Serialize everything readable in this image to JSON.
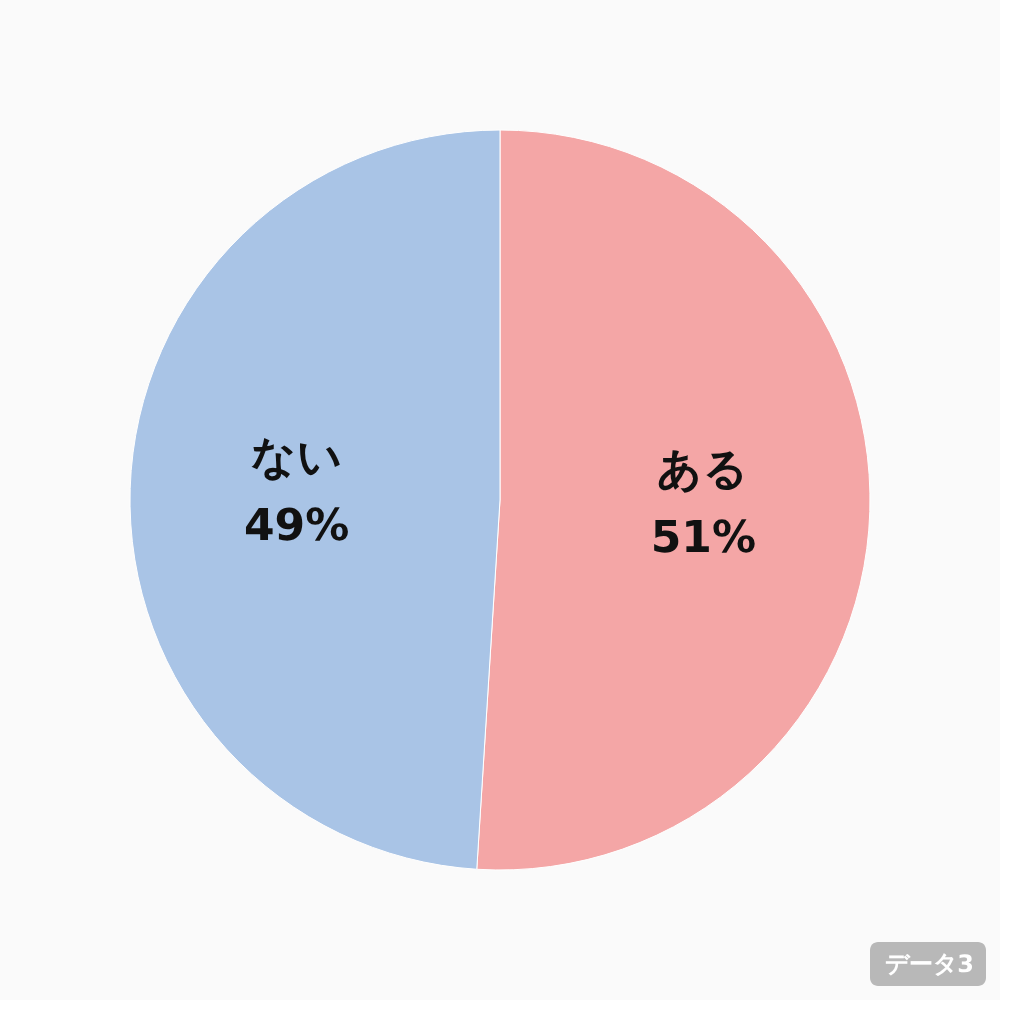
{
  "chart_data": {
    "type": "pie",
    "categories": [
      "ある",
      "ない"
    ],
    "values": [
      51,
      49
    ],
    "colors": [
      "#f4a6a6",
      "#a9c4e6"
    ],
    "value_labels": [
      "51%",
      "49%"
    ],
    "annotations": [
      "データ3"
    ],
    "legend": false
  }
}
